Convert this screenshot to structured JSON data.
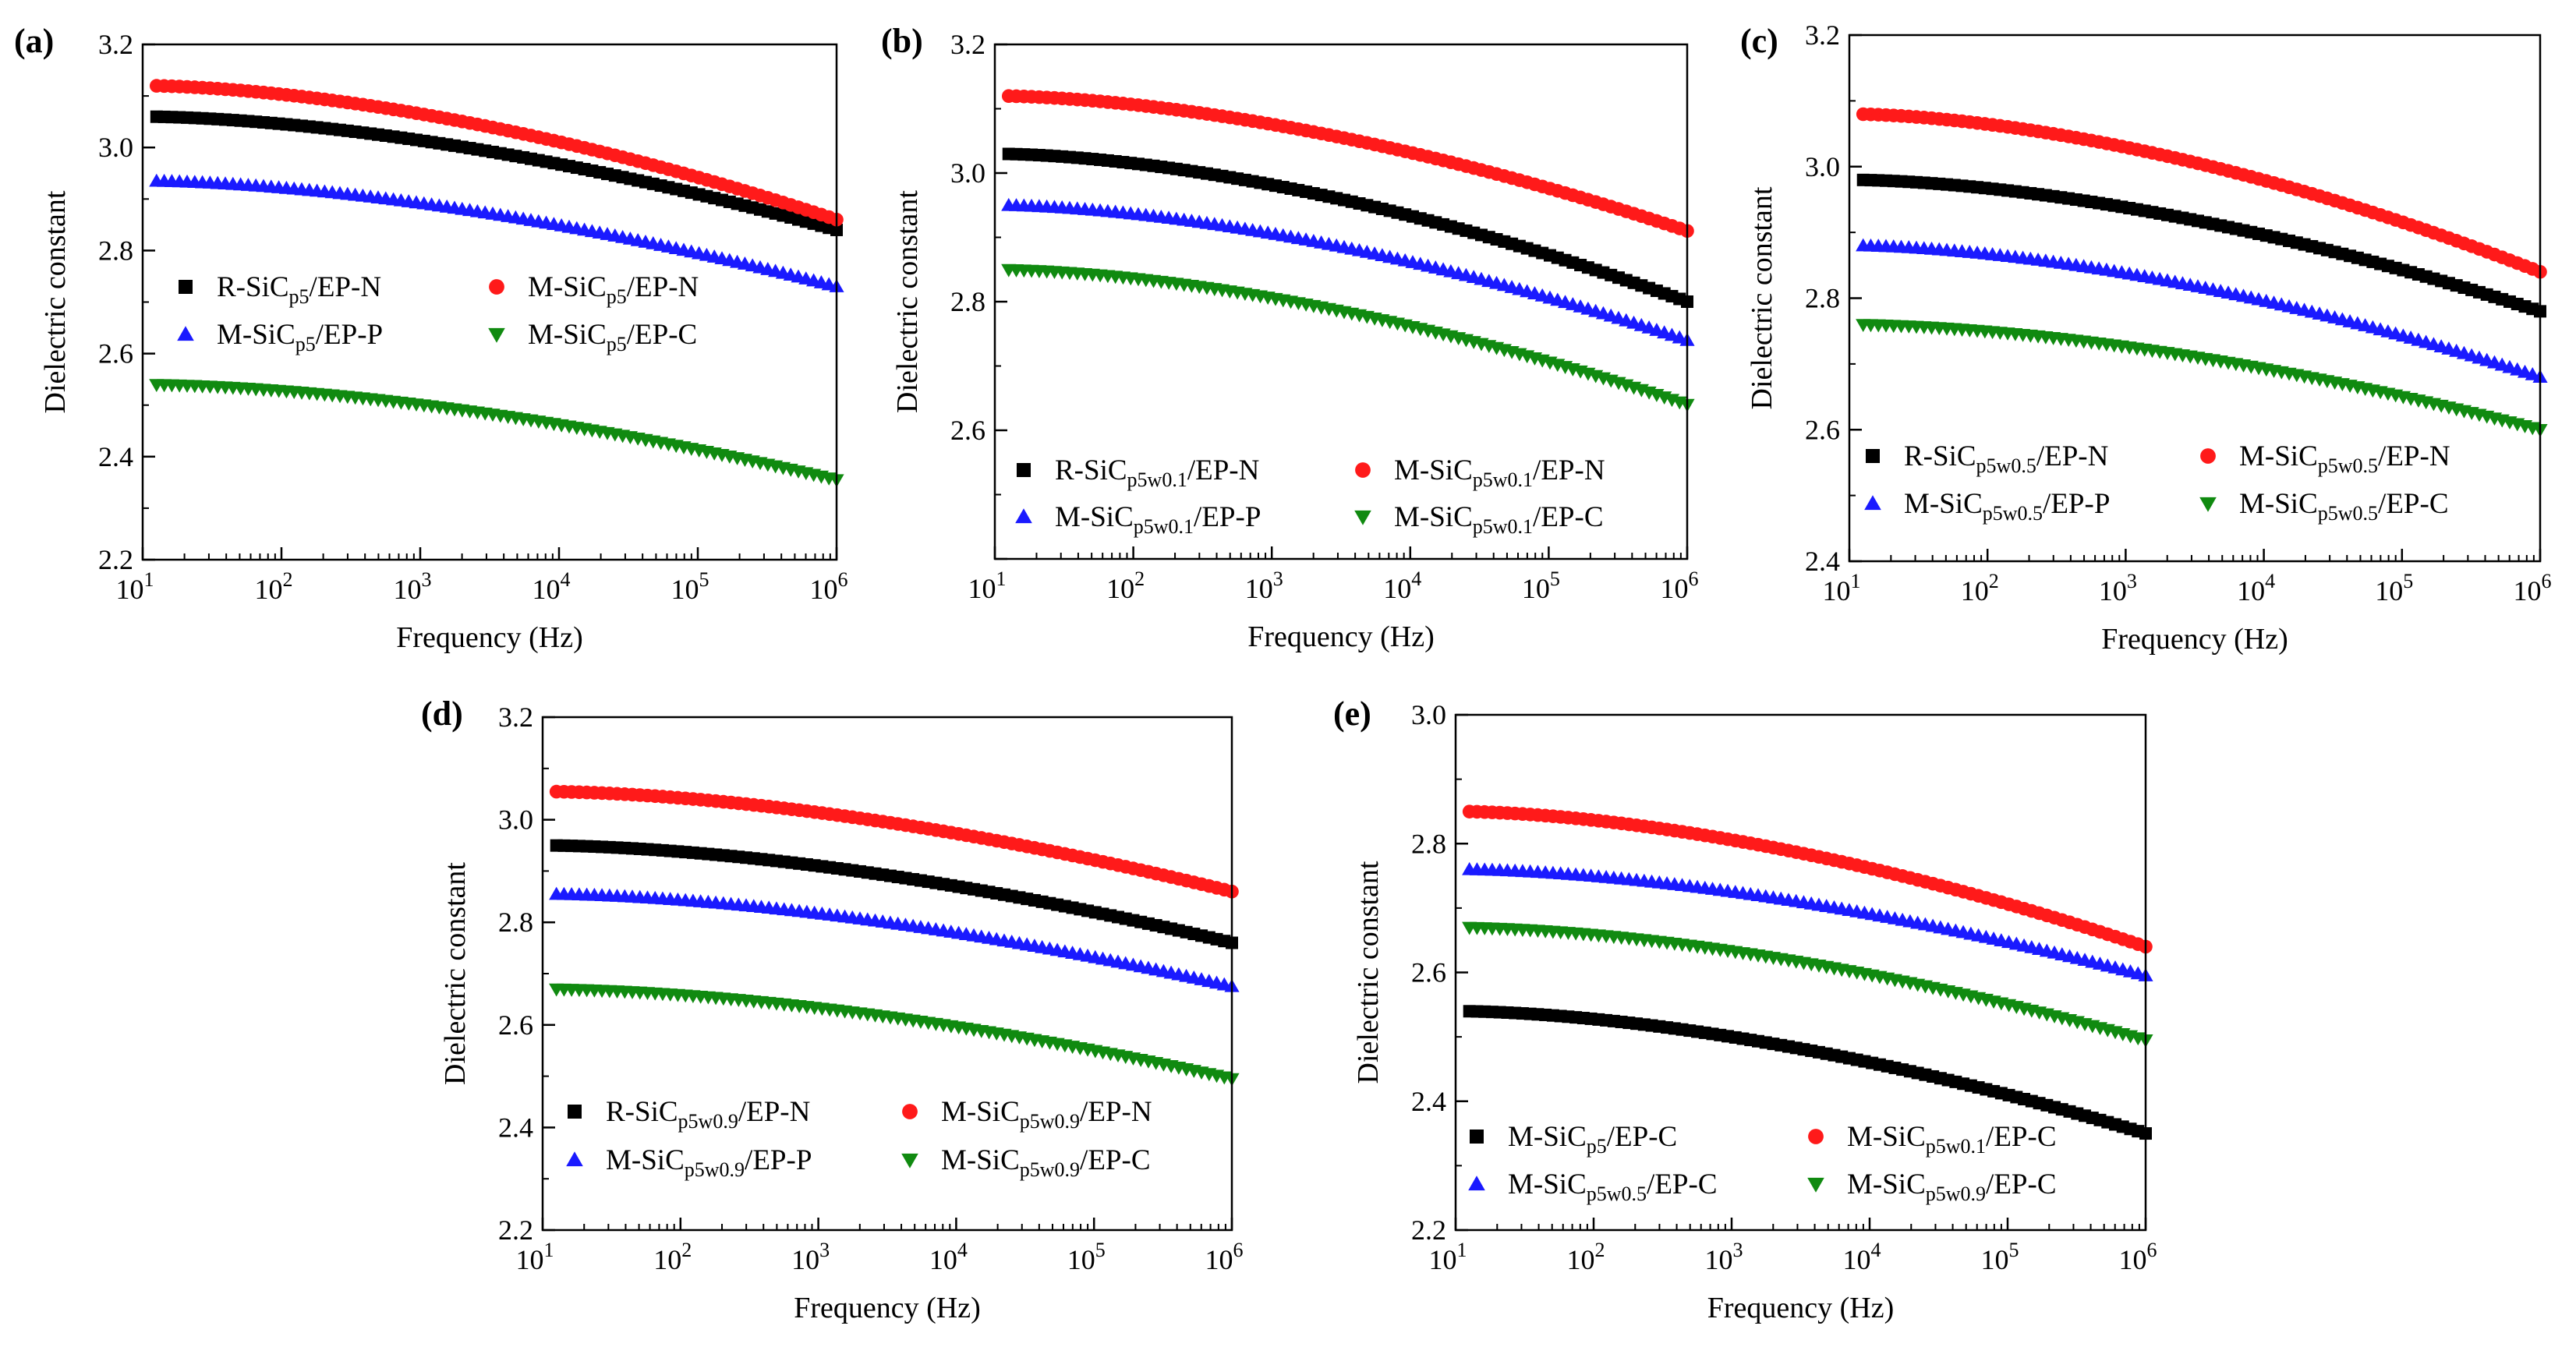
{
  "figure": {
    "x_tick_base": "10",
    "x_tick_exponents": [
      "1",
      "2",
      "3",
      "4",
      "5",
      "6"
    ]
  },
  "chart_data": [
    {
      "panel": "(a)",
      "type": "scatter",
      "xscale": "log",
      "xlim": [
        10,
        1000000
      ],
      "ylim": [
        2.2,
        3.2
      ],
      "yticks": [
        "2.2",
        "2.4",
        "2.6",
        "2.8",
        "3.0",
        "3.2"
      ],
      "xlabel": "Frequency (Hz)",
      "ylabel": "Dielectric constant",
      "series": [
        {
          "name_parts": [
            "R-SiC",
            "p5",
            "/EP-N"
          ],
          "color": "#000000",
          "marker": "square",
          "start": 3.06,
          "end": 2.84,
          "steps": []
        },
        {
          "name_parts": [
            "M-SiC",
            "p5",
            "/EP-N"
          ],
          "color": "#ff1a1a",
          "marker": "circle",
          "start": 3.12,
          "end": 2.86,
          "steps": []
        },
        {
          "name_parts": [
            "M-SiC",
            "p5",
            "/EP-P"
          ],
          "color": "#1a1aff",
          "marker": "triangle-up",
          "start": 2.935,
          "end": 2.73,
          "steps": []
        },
        {
          "name_parts": [
            "M-SiC",
            "p5",
            "/EP-C"
          ],
          "color": "#108a10",
          "marker": "triangle-down",
          "start": 2.54,
          "end": 2.355,
          "steps": [
            {
              "x": 120,
              "dy": 0.012
            }
          ]
        }
      ]
    },
    {
      "panel": "(b)",
      "type": "scatter",
      "xscale": "log",
      "xlim": [
        10,
        1000000
      ],
      "ylim": [
        2.4,
        3.2
      ],
      "yticks": [
        "2.6",
        "2.8",
        "3.0",
        "3.2"
      ],
      "xlabel": "Frequency (Hz)",
      "ylabel": "Dielectric constant",
      "series": [
        {
          "name_parts": [
            "R-SiC",
            "p5w0.1",
            "/EP-N"
          ],
          "color": "#000000",
          "marker": "square",
          "start": 3.03,
          "end": 2.8,
          "steps": []
        },
        {
          "name_parts": [
            "M-SiC",
            "p5w0.1",
            "/EP-N"
          ],
          "color": "#ff1a1a",
          "marker": "circle",
          "start": 3.12,
          "end": 2.91,
          "steps": []
        },
        {
          "name_parts": [
            "M-SiC",
            "p5w0.1",
            "/EP-P"
          ],
          "color": "#1a1aff",
          "marker": "triangle-up",
          "start": 2.95,
          "end": 2.74,
          "steps": []
        },
        {
          "name_parts": [
            "M-SiC",
            "p5w0.1",
            "/EP-C"
          ],
          "color": "#108a10",
          "marker": "triangle-down",
          "start": 2.85,
          "end": 2.64,
          "steps": []
        }
      ]
    },
    {
      "panel": "(c)",
      "type": "scatter",
      "xscale": "log",
      "xlim": [
        10,
        1000000
      ],
      "ylim": [
        2.4,
        3.2
      ],
      "yticks": [
        "2.4",
        "2.6",
        "2.8",
        "3.0",
        "3.2"
      ],
      "xlabel": "Frequency (Hz)",
      "ylabel": "Dielectric constant",
      "series": [
        {
          "name_parts": [
            "R-SiC",
            "p5w0.5",
            "/EP-N"
          ],
          "color": "#000000",
          "marker": "square",
          "start": 2.98,
          "end": 2.78,
          "steps": []
        },
        {
          "name_parts": [
            "M-SiC",
            "p5w0.5",
            "/EP-N"
          ],
          "color": "#ff1a1a",
          "marker": "circle",
          "start": 3.08,
          "end": 2.84,
          "steps": []
        },
        {
          "name_parts": [
            "M-SiC",
            "p5w0.5",
            "/EP-P"
          ],
          "color": "#1a1aff",
          "marker": "triangle-up",
          "start": 2.88,
          "end": 2.68,
          "steps": []
        },
        {
          "name_parts": [
            "M-SiC",
            "p5w0.5",
            "/EP-C"
          ],
          "color": "#108a10",
          "marker": "triangle-down",
          "start": 2.76,
          "end": 2.6,
          "steps": []
        }
      ]
    },
    {
      "panel": "(d)",
      "type": "scatter",
      "xscale": "log",
      "xlim": [
        10,
        1000000
      ],
      "ylim": [
        2.2,
        3.2
      ],
      "yticks": [
        "2.2",
        "2.4",
        "2.6",
        "2.8",
        "3.0",
        "3.2"
      ],
      "xlabel": "Frequency (Hz)",
      "ylabel": "Dielectric constant",
      "series": [
        {
          "name_parts": [
            "R-SiC",
            "p5w0.9",
            "/EP-N"
          ],
          "color": "#000000",
          "marker": "square",
          "start": 2.95,
          "end": 2.76,
          "steps": []
        },
        {
          "name_parts": [
            "M-SiC",
            "p5w0.9",
            "/EP-N"
          ],
          "color": "#ff1a1a",
          "marker": "circle",
          "start": 3.055,
          "end": 2.86,
          "steps": []
        },
        {
          "name_parts": [
            "M-SiC",
            "p5w0.9",
            "/EP-P"
          ],
          "color": "#1a1aff",
          "marker": "triangle-up",
          "start": 2.855,
          "end": 2.675,
          "steps": []
        },
        {
          "name_parts": [
            "M-SiC",
            "p5w0.9",
            "/EP-C"
          ],
          "color": "#108a10",
          "marker": "triangle-down",
          "start": 2.67,
          "end": 2.495,
          "steps": []
        }
      ]
    },
    {
      "panel": "(e)",
      "type": "scatter",
      "xscale": "log",
      "xlim": [
        10,
        1000000
      ],
      "ylim": [
        2.2,
        3.0
      ],
      "yticks": [
        "2.2",
        "2.4",
        "2.6",
        "2.8",
        "3.0"
      ],
      "xlabel": "Frequency (Hz)",
      "ylabel": "Dielectric constant",
      "series": [
        {
          "name_parts": [
            "M-SiC",
            "p5",
            "/EP-C"
          ],
          "color": "#000000",
          "marker": "square",
          "start": 2.54,
          "end": 2.35,
          "steps": [
            {
              "x": 120,
              "dy": 0.012
            }
          ]
        },
        {
          "name_parts": [
            "M-SiC",
            "p5w0.1",
            "/EP-C"
          ],
          "color": "#ff1a1a",
          "marker": "circle",
          "start": 2.85,
          "end": 2.64,
          "steps": []
        },
        {
          "name_parts": [
            "M-SiC",
            "p5w0.5",
            "/EP-C"
          ],
          "color": "#1a1aff",
          "marker": "triangle-up",
          "start": 2.76,
          "end": 2.595,
          "steps": []
        },
        {
          "name_parts": [
            "M-SiC",
            "p5w0.9",
            "/EP-C"
          ],
          "color": "#108a10",
          "marker": "triangle-down",
          "start": 2.67,
          "end": 2.495,
          "steps": []
        }
      ]
    }
  ]
}
